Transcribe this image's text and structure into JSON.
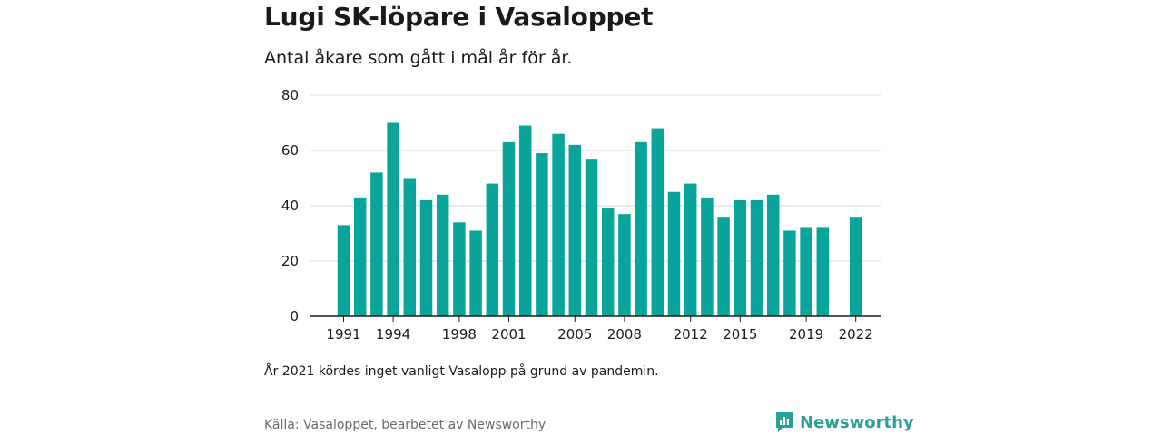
{
  "header": {
    "title": "Lugi SK-löpare i Vasaloppet",
    "subtitle": "Antal åkare som gått i mål år för år."
  },
  "footer": {
    "note": "År 2021 kördes inget vanligt Vasalopp på grund av pandemin.",
    "source": "Källa: Vasaloppet, bearbetet av Newsworthy",
    "logo_text": "Newsworthy"
  },
  "colors": {
    "bar": "#0aa59a",
    "grid": "#d9d9d9",
    "axis": "#1a1a1a",
    "logo": "#2aa198"
  },
  "chart_data": {
    "type": "bar",
    "title": "Lugi SK-löpare i Vasaloppet",
    "subtitle": "Antal åkare som gått i mål år för år.",
    "categories": [
      1991,
      1992,
      1993,
      1994,
      1995,
      1996,
      1997,
      1998,
      1999,
      2000,
      2001,
      2002,
      2003,
      2004,
      2005,
      2006,
      2007,
      2008,
      2009,
      2010,
      2011,
      2012,
      2013,
      2014,
      2015,
      2016,
      2017,
      2018,
      2019,
      2020,
      2021,
      2022
    ],
    "values": [
      33,
      43,
      52,
      70,
      50,
      42,
      44,
      34,
      31,
      48,
      63,
      69,
      59,
      66,
      62,
      57,
      39,
      37,
      63,
      68,
      45,
      48,
      43,
      36,
      42,
      42,
      44,
      31,
      32,
      32,
      null,
      36
    ],
    "x_tick_labels": [
      "1991",
      "1994",
      "1998",
      "2001",
      "2005",
      "2008",
      "2012",
      "2015",
      "2019",
      "2022"
    ],
    "y_ticks": [
      0,
      20,
      40,
      60,
      80
    ],
    "ylim": [
      0,
      80
    ],
    "grid": true,
    "legend": "none"
  }
}
